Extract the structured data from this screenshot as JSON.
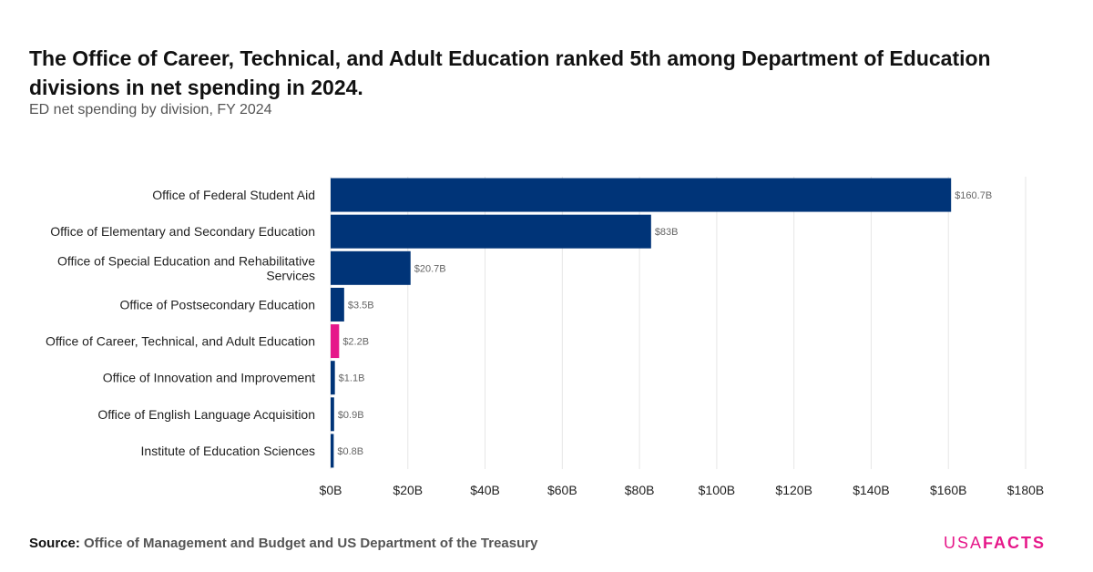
{
  "header": {
    "title": "The Office of Career, Technical, and Adult Education ranked 5th among Department of Education divisions in net spending in 2024.",
    "subtitle": "ED net spending by division, FY 2024"
  },
  "footer": {
    "source_label": "Source:",
    "source_text": "Office of Management and Budget and US Department of the Treasury",
    "logo_usa": "USA",
    "logo_facts": "FACTS"
  },
  "colors": {
    "bar": "#003478",
    "highlight": "#e6188a",
    "grid": "#e6e6e6",
    "label": "#666666"
  },
  "chart_data": {
    "type": "bar",
    "orientation": "horizontal",
    "title": "ED net spending by division, FY 2024",
    "xlabel": "",
    "ylabel": "",
    "categories": [
      [
        "Office of Federal Student Aid"
      ],
      [
        "Office of Elementary and Secondary Education"
      ],
      [
        "Office of Special Education and Rehabilitative",
        "Services"
      ],
      [
        "Office of Postsecondary Education"
      ],
      [
        "Office of Career, Technical, and Adult Education"
      ],
      [
        "Office of Innovation and Improvement"
      ],
      [
        "Office of English Language Acquisition"
      ],
      [
        "Institute of Education Sciences"
      ]
    ],
    "values": [
      160.7,
      83,
      20.7,
      3.5,
      2.2,
      1.1,
      0.9,
      0.8
    ],
    "value_labels": [
      "$160.7B",
      "$83B",
      "$20.7B",
      "$3.5B",
      "$2.2B",
      "$1.1B",
      "$0.9B",
      "$0.8B"
    ],
    "highlight_index": 4,
    "xlim": [
      0,
      180
    ],
    "xticks": [
      0,
      20,
      40,
      60,
      80,
      100,
      120,
      140,
      160,
      180
    ],
    "xtick_labels": [
      "$0B",
      "$20B",
      "$40B",
      "$60B",
      "$80B",
      "$100B",
      "$120B",
      "$140B",
      "$160B",
      "$180B"
    ],
    "grid": true,
    "legend": "none"
  }
}
